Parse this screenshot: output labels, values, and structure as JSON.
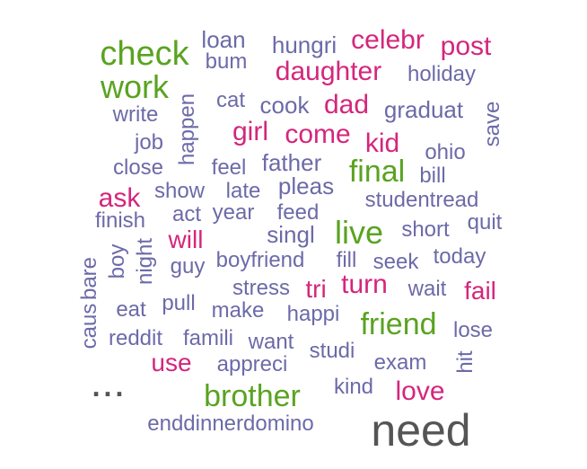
{
  "colors": {
    "pink": "#d4267c",
    "green": "#5aa321",
    "purple": "#6c6aa8",
    "dark": "#555555"
  },
  "words": [
    {
      "text": "check",
      "color": "green"
    },
    {
      "text": "work",
      "color": "green"
    },
    {
      "text": "loan",
      "color": "purple"
    },
    {
      "text": "bum",
      "color": "purple"
    },
    {
      "text": "hungri",
      "color": "purple"
    },
    {
      "text": "celebr",
      "color": "pink"
    },
    {
      "text": "post",
      "color": "pink"
    },
    {
      "text": "daughter",
      "color": "pink"
    },
    {
      "text": "holiday",
      "color": "purple"
    },
    {
      "text": "write",
      "color": "purple"
    },
    {
      "text": "happen",
      "color": "purple"
    },
    {
      "text": "cat",
      "color": "purple"
    },
    {
      "text": "cook",
      "color": "purple"
    },
    {
      "text": "dad",
      "color": "pink"
    },
    {
      "text": "graduat",
      "color": "purple"
    },
    {
      "text": "save",
      "color": "purple"
    },
    {
      "text": "job",
      "color": "purple"
    },
    {
      "text": "girl",
      "color": "pink"
    },
    {
      "text": "come",
      "color": "pink"
    },
    {
      "text": "kid",
      "color": "pink"
    },
    {
      "text": "ohio",
      "color": "purple"
    },
    {
      "text": "close",
      "color": "purple"
    },
    {
      "text": "feel",
      "color": "purple"
    },
    {
      "text": "father",
      "color": "purple"
    },
    {
      "text": "final",
      "color": "green"
    },
    {
      "text": "bill",
      "color": "purple"
    },
    {
      "text": "ask",
      "color": "pink"
    },
    {
      "text": "show",
      "color": "purple"
    },
    {
      "text": "late",
      "color": "purple"
    },
    {
      "text": "pleas",
      "color": "purple"
    },
    {
      "text": "studentread",
      "color": "purple"
    },
    {
      "text": "finish",
      "color": "purple"
    },
    {
      "text": "act",
      "color": "purple"
    },
    {
      "text": "year",
      "color": "purple"
    },
    {
      "text": "feed",
      "color": "purple"
    },
    {
      "text": "live",
      "color": "green"
    },
    {
      "text": "short",
      "color": "purple"
    },
    {
      "text": "quit",
      "color": "purple"
    },
    {
      "text": "will",
      "color": "pink"
    },
    {
      "text": "singl",
      "color": "purple"
    },
    {
      "text": "boy",
      "color": "purple"
    },
    {
      "text": "night",
      "color": "purple"
    },
    {
      "text": "guy",
      "color": "purple"
    },
    {
      "text": "boyfriend",
      "color": "purple"
    },
    {
      "text": "fill",
      "color": "purple"
    },
    {
      "text": "seek",
      "color": "purple"
    },
    {
      "text": "today",
      "color": "purple"
    },
    {
      "text": "caus",
      "color": "purple"
    },
    {
      "text": "bare",
      "color": "purple"
    },
    {
      "text": "stress",
      "color": "purple"
    },
    {
      "text": "tri",
      "color": "pink"
    },
    {
      "text": "turn",
      "color": "pink"
    },
    {
      "text": "wait",
      "color": "purple"
    },
    {
      "text": "fail",
      "color": "pink"
    },
    {
      "text": "eat",
      "color": "purple"
    },
    {
      "text": "pull",
      "color": "purple"
    },
    {
      "text": "make",
      "color": "purple"
    },
    {
      "text": "happi",
      "color": "purple"
    },
    {
      "text": "friend",
      "color": "green"
    },
    {
      "text": "reddit",
      "color": "purple"
    },
    {
      "text": "famili",
      "color": "purple"
    },
    {
      "text": "want",
      "color": "purple"
    },
    {
      "text": "lose",
      "color": "purple"
    },
    {
      "text": "use",
      "color": "pink"
    },
    {
      "text": "appreci",
      "color": "purple"
    },
    {
      "text": "studi",
      "color": "purple"
    },
    {
      "text": "exam",
      "color": "purple"
    },
    {
      "text": "hit",
      "color": "purple"
    },
    {
      "text": "...",
      "color": "dark"
    },
    {
      "text": "brother",
      "color": "green"
    },
    {
      "text": "kind",
      "color": "purple"
    },
    {
      "text": "love",
      "color": "pink"
    },
    {
      "text": "enddinnerdomino",
      "color": "purple"
    },
    {
      "text": "need",
      "color": "dark"
    }
  ]
}
